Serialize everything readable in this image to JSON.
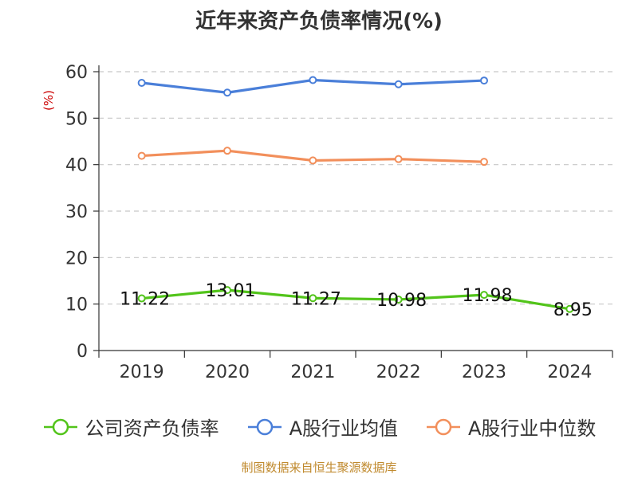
{
  "chart_data": {
    "type": "line",
    "title": "近年来资产负债率情况(%)",
    "ylabel": "(%)",
    "categories": [
      "2019",
      "2020",
      "2021",
      "2022",
      "2023",
      "2024"
    ],
    "ylim": [
      0,
      60
    ],
    "yticks": [
      "0",
      "10",
      "20",
      "30",
      "40",
      "50",
      "60"
    ],
    "grid": true,
    "legend_position": "bottom",
    "series": [
      {
        "name": "公司资产负债率",
        "color": "#52c41a",
        "values": [
          11.22,
          13.01,
          11.27,
          10.98,
          11.98,
          8.95
        ],
        "labels": [
          "11.22",
          "13.01",
          "11.27",
          "10.98",
          "11.98",
          "8.95"
        ]
      },
      {
        "name": "A股行业均值",
        "color": "#4a7fd9",
        "values": [
          57.6,
          55.5,
          58.2,
          57.3,
          58.1,
          null
        ]
      },
      {
        "name": "A股行业中位数",
        "color": "#f28f5b",
        "values": [
          41.9,
          43.0,
          40.9,
          41.2,
          40.6,
          null
        ]
      }
    ]
  },
  "source": "制图数据来自恒生聚源数据库"
}
